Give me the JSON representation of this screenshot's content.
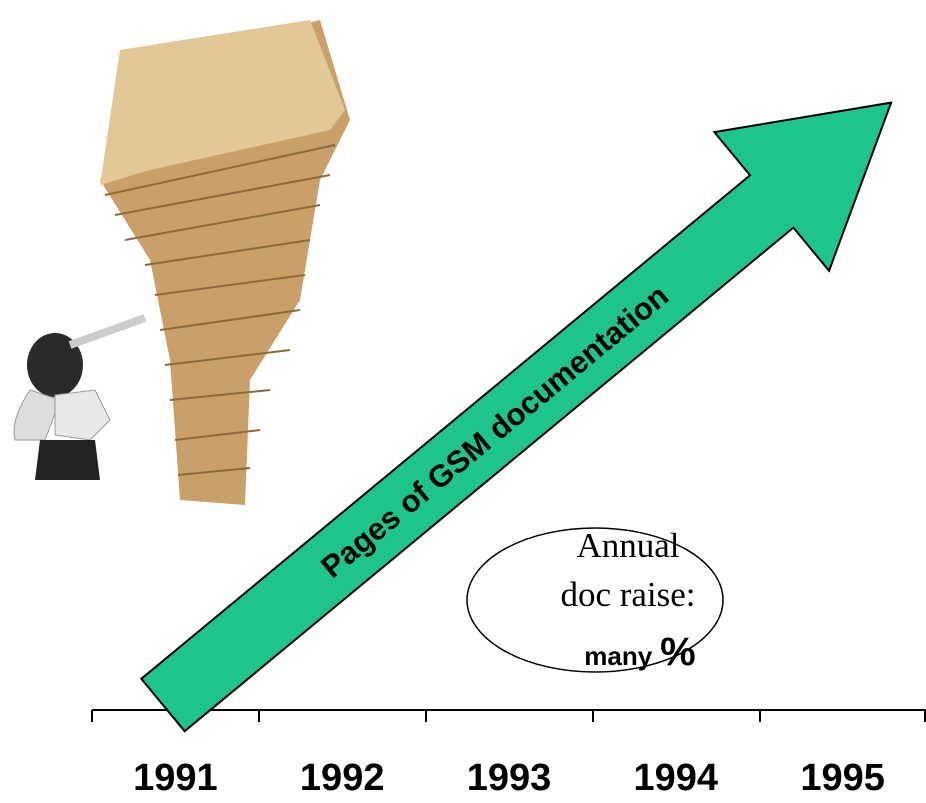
{
  "arrow": {
    "label": "Pages of GSM documentation"
  },
  "callout": {
    "lines": [
      "Annual",
      "doc raise:"
    ],
    "emphasis": "many",
    "unit": "%"
  },
  "timeline": {
    "years": [
      "1991",
      "1992",
      "1993",
      "1994",
      "1995"
    ]
  }
}
